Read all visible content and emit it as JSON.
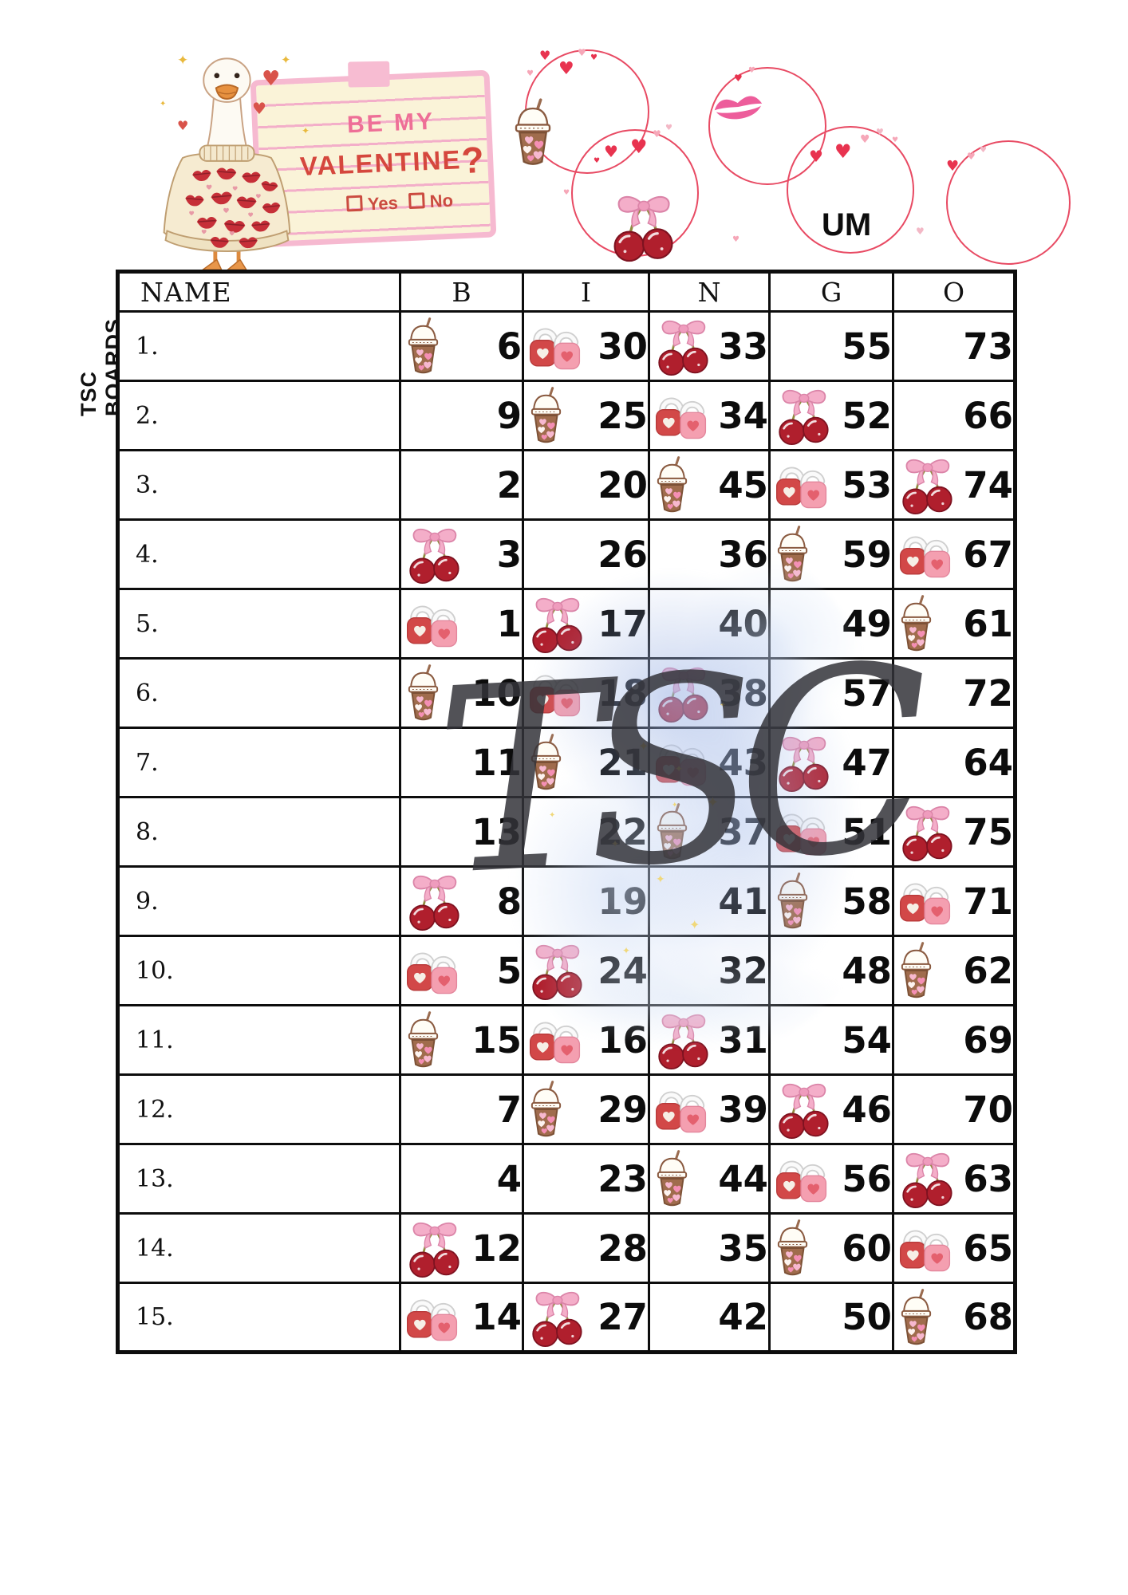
{
  "brand": {
    "vertical_label": "TSC BOARDS",
    "watermark": "TSC"
  },
  "header": {
    "note": {
      "line1": "BE MY",
      "line2": "VALENTINE",
      "question_mark": "?",
      "yes_label": "Yes",
      "no_label": "No"
    },
    "um_text": "UM",
    "decor_icons": [
      "goose-mascot",
      "heart-wreath",
      "drink-cup-icon",
      "lips-kiss-icon",
      "cherries-bow-icon",
      "heart-icon",
      "sparkle-icon"
    ]
  },
  "colors": {
    "accent_red": "#e84a63",
    "lock_red": "#d24848",
    "lock_pink": "#f49fb0",
    "cherry_red": "#b01f2d",
    "bow_pink": "#f4aec9",
    "cup_brown": "#a06c4d",
    "splash_blue": "#b7c8ec",
    "watermark_grey": "#34343a",
    "note_paper": "#faf3d8",
    "note_border": "#f6b9d0",
    "note_text_pink": "#ee6f97",
    "note_text_red": "#d5473d"
  },
  "board": {
    "name_header": "NAME",
    "columns": [
      "B",
      "I",
      "N",
      "G",
      "O"
    ],
    "rows": [
      {
        "label": "1.",
        "cells": [
          {
            "v": 6,
            "icon": "drink"
          },
          {
            "v": 30,
            "icon": "locks"
          },
          {
            "v": 33,
            "icon": "cherries"
          },
          {
            "v": 55,
            "icon": ""
          },
          {
            "v": 73,
            "icon": ""
          }
        ]
      },
      {
        "label": "2.",
        "cells": [
          {
            "v": 9,
            "icon": ""
          },
          {
            "v": 25,
            "icon": "drink"
          },
          {
            "v": 34,
            "icon": "locks"
          },
          {
            "v": 52,
            "icon": "cherries"
          },
          {
            "v": 66,
            "icon": ""
          }
        ]
      },
      {
        "label": "3.",
        "cells": [
          {
            "v": 2,
            "icon": ""
          },
          {
            "v": 20,
            "icon": ""
          },
          {
            "v": 45,
            "icon": "drink"
          },
          {
            "v": 53,
            "icon": "locks"
          },
          {
            "v": 74,
            "icon": "cherries"
          }
        ]
      },
      {
        "label": "4.",
        "cells": [
          {
            "v": 3,
            "icon": "cherries"
          },
          {
            "v": 26,
            "icon": ""
          },
          {
            "v": 36,
            "icon": ""
          },
          {
            "v": 59,
            "icon": "drink"
          },
          {
            "v": 67,
            "icon": "locks"
          }
        ]
      },
      {
        "label": "5.",
        "cells": [
          {
            "v": 1,
            "icon": "locks"
          },
          {
            "v": 17,
            "icon": "cherries"
          },
          {
            "v": 40,
            "icon": ""
          },
          {
            "v": 49,
            "icon": ""
          },
          {
            "v": 61,
            "icon": "drink"
          }
        ]
      },
      {
        "label": "6.",
        "cells": [
          {
            "v": 10,
            "icon": "drink"
          },
          {
            "v": 18,
            "icon": "locks"
          },
          {
            "v": 38,
            "icon": "cherries"
          },
          {
            "v": 57,
            "icon": ""
          },
          {
            "v": 72,
            "icon": ""
          }
        ]
      },
      {
        "label": "7.",
        "cells": [
          {
            "v": 11,
            "icon": ""
          },
          {
            "v": 21,
            "icon": "drink"
          },
          {
            "v": 43,
            "icon": "locks"
          },
          {
            "v": 47,
            "icon": "cherries"
          },
          {
            "v": 64,
            "icon": ""
          }
        ]
      },
      {
        "label": "8.",
        "cells": [
          {
            "v": 13,
            "icon": ""
          },
          {
            "v": 22,
            "icon": ""
          },
          {
            "v": 37,
            "icon": "drink"
          },
          {
            "v": 51,
            "icon": "locks"
          },
          {
            "v": 75,
            "icon": "cherries"
          }
        ]
      },
      {
        "label": "9.",
        "cells": [
          {
            "v": 8,
            "icon": "cherries"
          },
          {
            "v": 19,
            "icon": ""
          },
          {
            "v": 41,
            "icon": ""
          },
          {
            "v": 58,
            "icon": "drink"
          },
          {
            "v": 71,
            "icon": "locks"
          }
        ]
      },
      {
        "label": "10.",
        "cells": [
          {
            "v": 5,
            "icon": "locks"
          },
          {
            "v": 24,
            "icon": "cherries"
          },
          {
            "v": 32,
            "icon": ""
          },
          {
            "v": 48,
            "icon": ""
          },
          {
            "v": 62,
            "icon": "drink"
          }
        ]
      },
      {
        "label": "11.",
        "cells": [
          {
            "v": 15,
            "icon": "drink"
          },
          {
            "v": 16,
            "icon": "locks"
          },
          {
            "v": 31,
            "icon": "cherries"
          },
          {
            "v": 54,
            "icon": ""
          },
          {
            "v": 69,
            "icon": ""
          }
        ]
      },
      {
        "label": "12.",
        "cells": [
          {
            "v": 7,
            "icon": ""
          },
          {
            "v": 29,
            "icon": "drink"
          },
          {
            "v": 39,
            "icon": "locks"
          },
          {
            "v": 46,
            "icon": "cherries"
          },
          {
            "v": 70,
            "icon": ""
          }
        ]
      },
      {
        "label": "13.",
        "cells": [
          {
            "v": 4,
            "icon": ""
          },
          {
            "v": 23,
            "icon": ""
          },
          {
            "v": 44,
            "icon": "drink"
          },
          {
            "v": 56,
            "icon": "locks"
          },
          {
            "v": 63,
            "icon": "cherries"
          }
        ]
      },
      {
        "label": "14.",
        "cells": [
          {
            "v": 12,
            "icon": "cherries"
          },
          {
            "v": 28,
            "icon": ""
          },
          {
            "v": 35,
            "icon": ""
          },
          {
            "v": 60,
            "icon": "drink"
          },
          {
            "v": 65,
            "icon": "locks"
          }
        ]
      },
      {
        "label": "15.",
        "cells": [
          {
            "v": 14,
            "icon": "locks"
          },
          {
            "v": 27,
            "icon": "cherries"
          },
          {
            "v": 42,
            "icon": ""
          },
          {
            "v": 50,
            "icon": ""
          },
          {
            "v": 68,
            "icon": "drink"
          }
        ]
      }
    ]
  }
}
